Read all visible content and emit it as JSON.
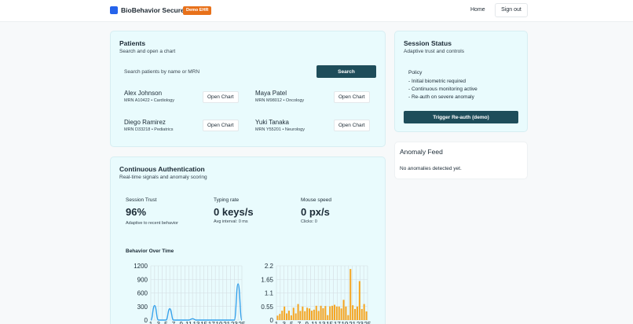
{
  "header": {
    "brand": "BioBehavior Secure",
    "badge": "Demo EHR",
    "nav_home": "Home",
    "nav_signout": "Sign out",
    "brand_color": "#2563eb",
    "badge_color": "#e8711a"
  },
  "patients": {
    "title": "Patients",
    "subtitle": "Search and open a chart",
    "search_placeholder": "Search patients by name or MRN",
    "search_button": "Search",
    "open_label": "Open Chart",
    "list": [
      {
        "name": "Alex Johnson",
        "meta": "MRN A10422 • Cardiology"
      },
      {
        "name": "Maya Patel",
        "meta": "MRN M98012 • Oncology"
      },
      {
        "name": "Diego Ramirez",
        "meta": "MRN D33218 • Pediatrics"
      },
      {
        "name": "Yuki Tanaka",
        "meta": "MRN Y55201 • Neurology"
      }
    ]
  },
  "session": {
    "title": "Session Status",
    "subtitle": "Adaptive trust and controls",
    "policy_title": "Policy",
    "policy_items": [
      "- Initial biometric required",
      "- Continuous monitoring active",
      "- Re-auth on severe anomaly"
    ],
    "reauth_button": "Trigger Re-auth (demo)"
  },
  "anomaly": {
    "title": "Anomaly Feed",
    "empty": "No anomalies detected yet."
  },
  "auth": {
    "title": "Continuous Authentication",
    "subtitle": "Real-time signals and anomaly scoring",
    "metrics": [
      {
        "label": "Session Trust",
        "value": "96%",
        "note": "Adaptive to recent behavior"
      },
      {
        "label": "Typing rate",
        "value": "0 keys/s",
        "note": "Avg interval: 0 ms"
      },
      {
        "label": "Mouse speed",
        "value": "0 px/s",
        "note": "Clicks: 0"
      }
    ],
    "chart_title": "Behavior Over Time"
  },
  "chart_data": [
    {
      "type": "line",
      "title": "",
      "ylim": [
        0,
        1200
      ],
      "y_ticks": [
        "1200",
        "900",
        "600",
        "300",
        "0"
      ],
      "x_ticks": [
        "1",
        "3",
        "5",
        "7",
        "9",
        "11",
        "13",
        "15",
        "17",
        "19",
        "21",
        "23",
        "25"
      ],
      "color": "#36a2eb",
      "x": [
        1,
        2,
        3,
        4,
        5,
        6,
        7,
        8,
        9,
        10,
        11,
        12,
        13,
        14,
        15,
        16,
        17,
        18,
        19,
        20,
        21,
        22,
        23,
        24,
        25
      ],
      "values": [
        0,
        320,
        0,
        0,
        0,
        250,
        0,
        0,
        0,
        0,
        0,
        30,
        0,
        0,
        0,
        0,
        0,
        0,
        0,
        0,
        0,
        0,
        0,
        800,
        0
      ]
    },
    {
      "type": "bar",
      "title": "",
      "ylim": [
        0,
        2.2
      ],
      "y_ticks": [
        "2.2",
        "1.65",
        "1.1",
        "0.55",
        "0"
      ],
      "x_ticks": [
        "1",
        "3",
        "5",
        "7",
        "9",
        "11",
        "13",
        "15",
        "17",
        "19",
        "21",
        "23",
        "25"
      ],
      "color": "#f5a623",
      "categories": [
        "1",
        "2",
        "3",
        "4",
        "5",
        "6",
        "7",
        "8",
        "9",
        "10",
        "11",
        "12",
        "13",
        "14",
        "15",
        "16",
        "17",
        "18",
        "19",
        "20",
        "21",
        "22",
        "23",
        "24",
        "25",
        "26",
        "27",
        "28",
        "29",
        "30",
        "31",
        "32",
        "33",
        "34",
        "35",
        "36",
        "37",
        "38",
        "39",
        "40"
      ],
      "values": [
        0.18,
        0.25,
        0.38,
        0.55,
        0.27,
        0.38,
        0.19,
        0.5,
        0.27,
        0.65,
        0.37,
        0.55,
        0.36,
        0.5,
        0.47,
        0.38,
        0.42,
        0.58,
        0.37,
        0.58,
        0.48,
        0.57,
        0.2,
        0.56,
        0.58,
        0.62,
        0.55,
        0.55,
        0.47,
        0.82,
        0.55,
        0.2,
        2.07,
        0.6,
        0.45,
        0.55,
        1.58,
        0.45,
        0.65,
        0.35
      ]
    }
  ]
}
